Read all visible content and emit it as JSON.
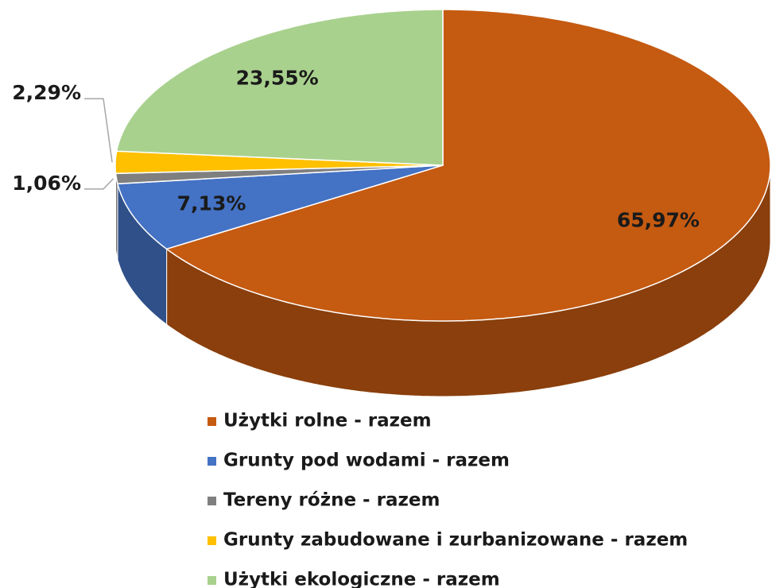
{
  "chart_data": {
    "type": "pie",
    "categories": [
      "Użytki rolne - razem",
      "Grunty pod wodami - razem",
      "Tereny różne - razem",
      "Grunty zabudowane i zurbanizowane - razem",
      "Użytki ekologiczne - razem"
    ],
    "values": [
      65.97,
      7.13,
      1.06,
      2.29,
      23.55
    ],
    "value_labels": [
      "65,97%",
      "7,13%",
      "1,06%",
      "2,29%",
      "23,55%"
    ],
    "colors": [
      "#c55a11",
      "#4472c4",
      "#7f7f7f",
      "#ffc000",
      "#a9d18e"
    ],
    "legend": "bottom"
  }
}
